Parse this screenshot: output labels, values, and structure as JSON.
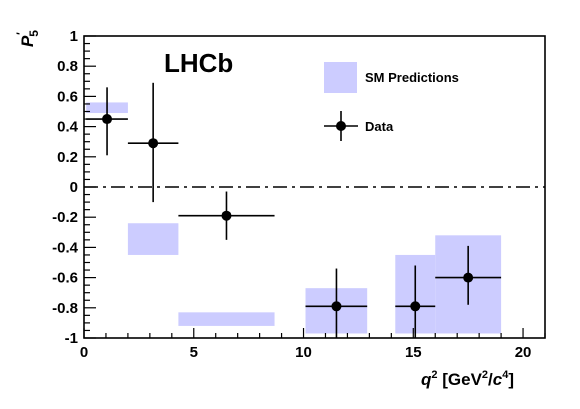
{
  "chart_data": {
    "type": "scatter",
    "brand_label": "LHCb",
    "ylabel": "P'5",
    "xlabel": "q2 [GeV2/c4]",
    "xlim": [
      0,
      21
    ],
    "ylim": [
      -1,
      1
    ],
    "x_ticks": [
      0,
      5,
      10,
      15,
      20
    ],
    "y_ticks": [
      -1,
      -0.8,
      -0.6,
      -0.4,
      -0.2,
      0,
      0.2,
      0.4,
      0.6,
      0.8,
      1
    ],
    "x_tick_labels": [
      "0",
      "5",
      "10",
      "15",
      "20"
    ],
    "y_tick_labels": [
      "-1",
      "-0.8",
      "-0.6",
      "-0.4",
      "-0.2",
      "0",
      "0.2",
      "0.4",
      "0.6",
      "0.8",
      "1"
    ],
    "reference_line": {
      "y": 0,
      "style": "dash-dot"
    },
    "legend": {
      "position": "top-right",
      "entries": [
        "SM Predictions",
        "Data"
      ]
    },
    "colors": {
      "prediction_band": "#ccccff",
      "data": "#000000"
    },
    "series": [
      {
        "name": "SM Predictions",
        "kind": "band",
        "bins": [
          {
            "x_low": 0.1,
            "x_high": 2.0,
            "y_low": 0.49,
            "y_high": 0.56
          },
          {
            "x_low": 2.0,
            "x_high": 4.3,
            "y_low": -0.45,
            "y_high": -0.24
          },
          {
            "x_low": 4.3,
            "x_high": 8.68,
            "y_low": -0.92,
            "y_high": -0.83
          },
          {
            "x_low": 10.09,
            "x_high": 12.9,
            "y_low": -0.97,
            "y_high": -0.67
          },
          {
            "x_low": 14.18,
            "x_high": 16.0,
            "y_low": -0.97,
            "y_high": -0.45
          },
          {
            "x_low": 16.0,
            "x_high": 19.0,
            "y_low": -0.97,
            "y_high": -0.32
          }
        ]
      },
      {
        "name": "Data",
        "kind": "points",
        "points": [
          {
            "x": 1.05,
            "x_low": 0.1,
            "x_high": 2.0,
            "y": 0.45,
            "y_low": 0.21,
            "y_high": 0.66
          },
          {
            "x": 3.15,
            "x_low": 2.0,
            "x_high": 4.3,
            "y": 0.29,
            "y_low": -0.1,
            "y_high": 0.69
          },
          {
            "x": 6.49,
            "x_low": 4.3,
            "x_high": 8.68,
            "y": -0.19,
            "y_low": -0.35,
            "y_high": -0.03
          },
          {
            "x": 11.5,
            "x_low": 10.09,
            "x_high": 12.9,
            "y": -0.79,
            "y_low": -1.0,
            "y_high": -0.54
          },
          {
            "x": 15.09,
            "x_low": 14.18,
            "x_high": 16.0,
            "y": -0.79,
            "y_low": -1.0,
            "y_high": -0.52
          },
          {
            "x": 17.5,
            "x_low": 16.0,
            "x_high": 19.0,
            "y": -0.6,
            "y_low": -0.78,
            "y_high": -0.39
          }
        ]
      }
    ]
  }
}
